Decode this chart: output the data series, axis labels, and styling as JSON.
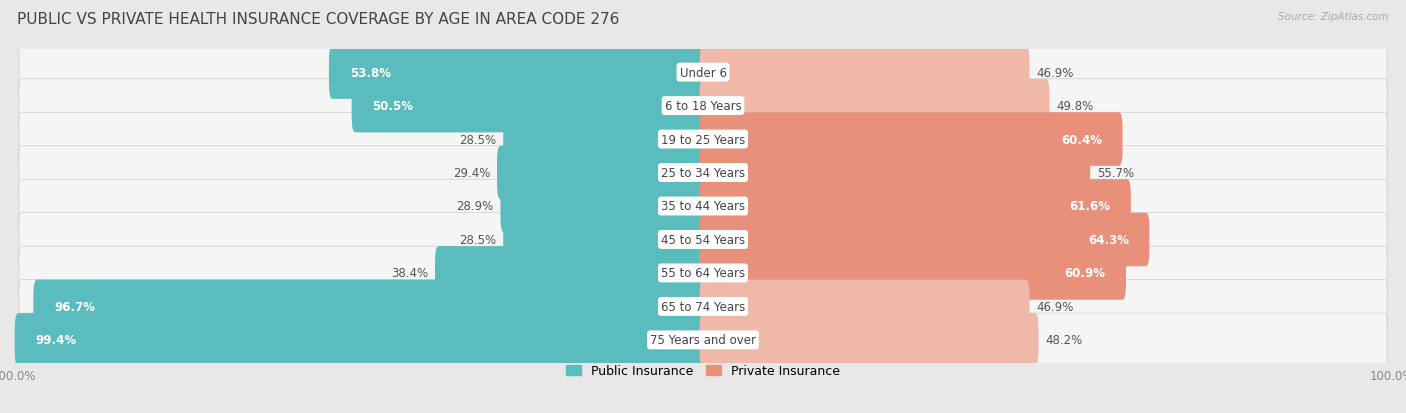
{
  "title": "Public vs Private Health Insurance Coverage by Age in Area Code 276",
  "source": "Source: ZipAtlas.com",
  "categories": [
    "Under 6",
    "6 to 18 Years",
    "19 to 25 Years",
    "25 to 34 Years",
    "35 to 44 Years",
    "45 to 54 Years",
    "55 to 64 Years",
    "65 to 74 Years",
    "75 Years and over"
  ],
  "public_values": [
    53.8,
    50.5,
    28.5,
    29.4,
    28.9,
    28.5,
    38.4,
    96.7,
    99.4
  ],
  "private_values": [
    46.9,
    49.8,
    60.4,
    55.7,
    61.6,
    64.3,
    60.9,
    46.9,
    48.2
  ],
  "public_color": "#5bbcbe",
  "private_color": "#e8907a",
  "private_color_light": "#f0b8a8",
  "background_color": "#e8e8e8",
  "row_bg_color": "#f5f5f5",
  "title_fontsize": 11,
  "label_fontsize": 8.5,
  "tick_fontsize": 8.5,
  "legend_fontsize": 9
}
